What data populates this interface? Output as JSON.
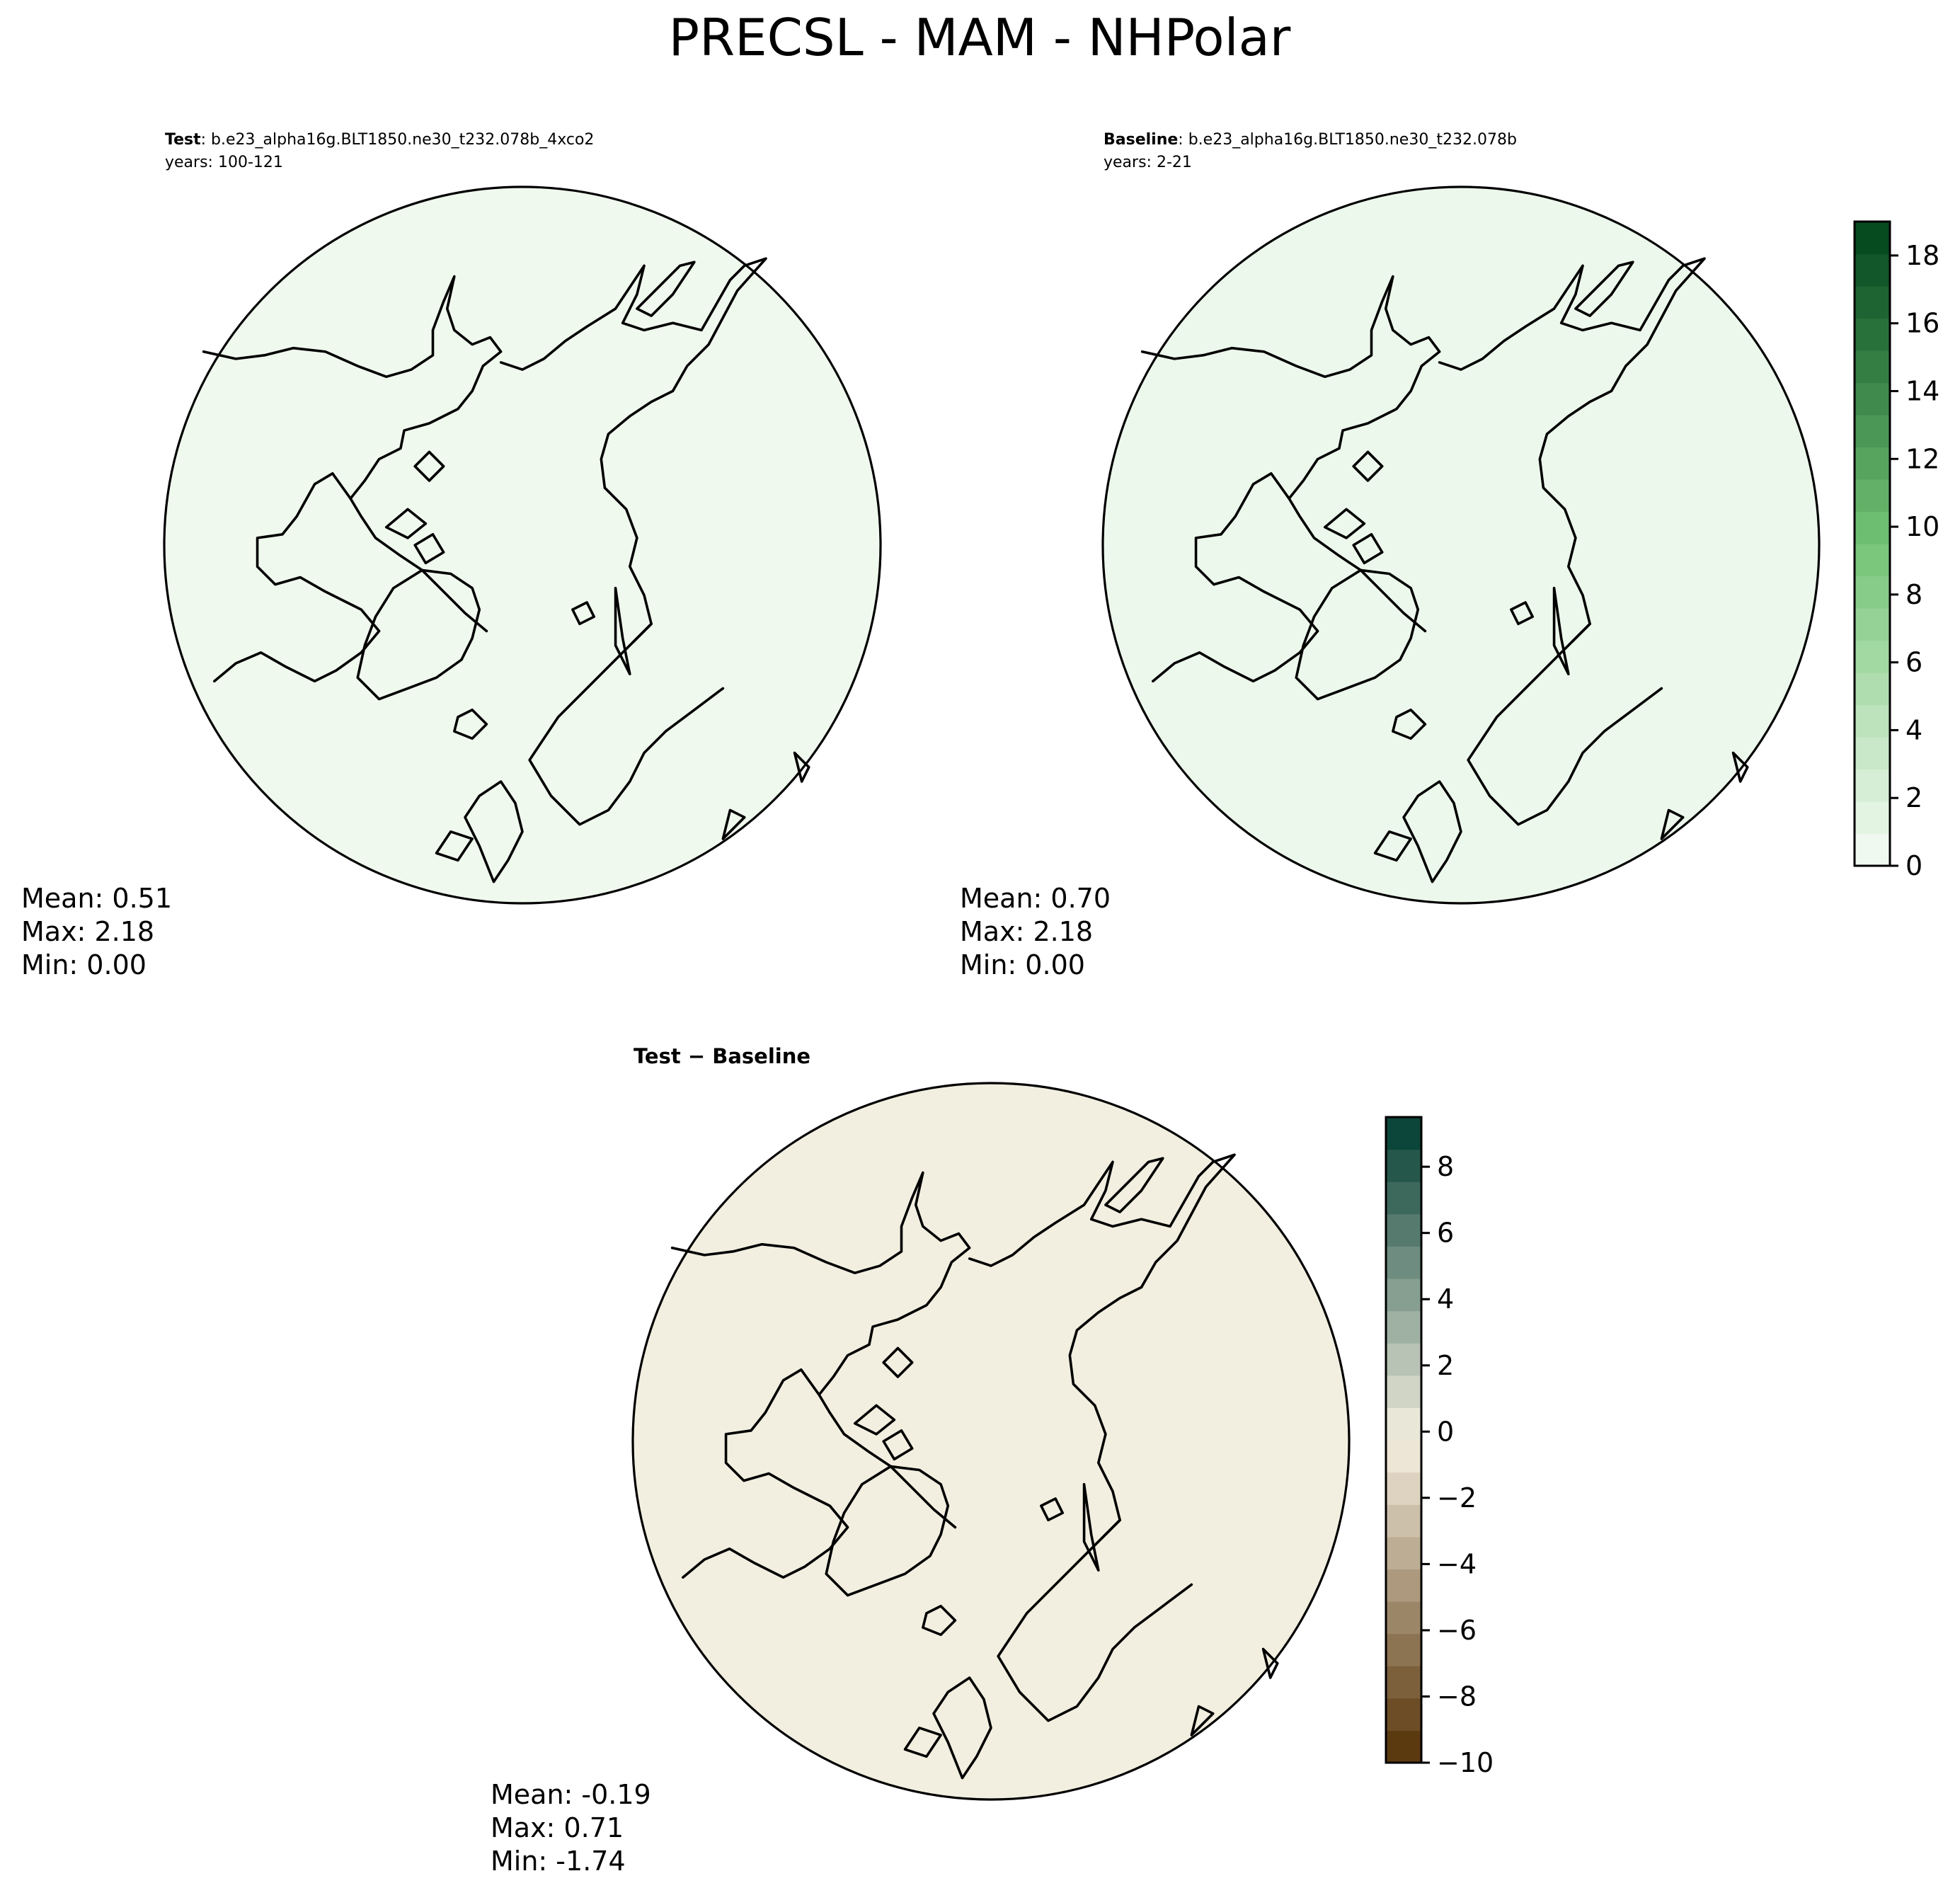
{
  "figure": {
    "title": "PRECSL - MAM - NHPolar"
  },
  "panels": [
    {
      "id": "test",
      "label_bold": "Test",
      "label_rest": ": b.e23_alpha16g.BLT1850.ne30_t232.078b_4xco2",
      "years": "years: 100-121",
      "stats": {
        "mean": "Mean:  0.51",
        "max": "Max:  2.18",
        "min": "Min:  0.00"
      },
      "field_level": 0.51
    },
    {
      "id": "baseline",
      "label_bold": "Baseline",
      "label_rest": ": b.e23_alpha16g.BLT1850.ne30_t232.078b",
      "years": "years: 2-21",
      "stats": {
        "mean": "Mean:  0.70",
        "max": "Max:  2.18",
        "min": "Min:  0.00"
      },
      "field_level": 0.7
    },
    {
      "id": "diff",
      "label_bold": "Test − Baseline",
      "stats": {
        "mean": "Mean: -0.19",
        "max": "Max:  0.71",
        "min": "Min: -1.74"
      },
      "field_level": -0.19
    }
  ],
  "chart_data": [
    {
      "type": "heatmap",
      "title": "PRECSL - MAM - NHPolar",
      "colormap": "Greens",
      "colorbar": {
        "range": [
          0,
          19
        ],
        "ticks": [
          "0",
          "2",
          "4",
          "6",
          "8",
          "10",
          "12",
          "14",
          "16",
          "18"
        ],
        "tick_values": [
          0,
          2,
          4,
          6,
          8,
          10,
          12,
          14,
          16,
          18
        ],
        "levels": 20,
        "color_low": "#f7fcf5",
        "color_mid": "#74c476",
        "color_high": "#00441b"
      },
      "series": [
        {
          "name": "Test",
          "mean": 0.51,
          "max": 2.18,
          "min": 0.0
        },
        {
          "name": "Baseline",
          "mean": 0.7,
          "max": 2.18,
          "min": 0.0
        }
      ]
    },
    {
      "type": "heatmap",
      "title": "Test − Baseline",
      "colormap": "BrBG",
      "colorbar": {
        "range": [
          -10,
          9.5
        ],
        "ticks": [
          "−10",
          "−8",
          "−6",
          "−4",
          "−2",
          "0",
          "2",
          "4",
          "6",
          "8"
        ],
        "tick_values": [
          -10,
          -8,
          -6,
          -4,
          -2,
          0,
          2,
          4,
          6,
          8
        ],
        "levels": 20,
        "color_low": "#543005",
        "color_mid": "#f5f0e1",
        "color_high": "#003c30"
      },
      "series": [
        {
          "name": "Test − Baseline",
          "mean": -0.19,
          "max": 0.71,
          "min": -1.74
        }
      ]
    }
  ]
}
